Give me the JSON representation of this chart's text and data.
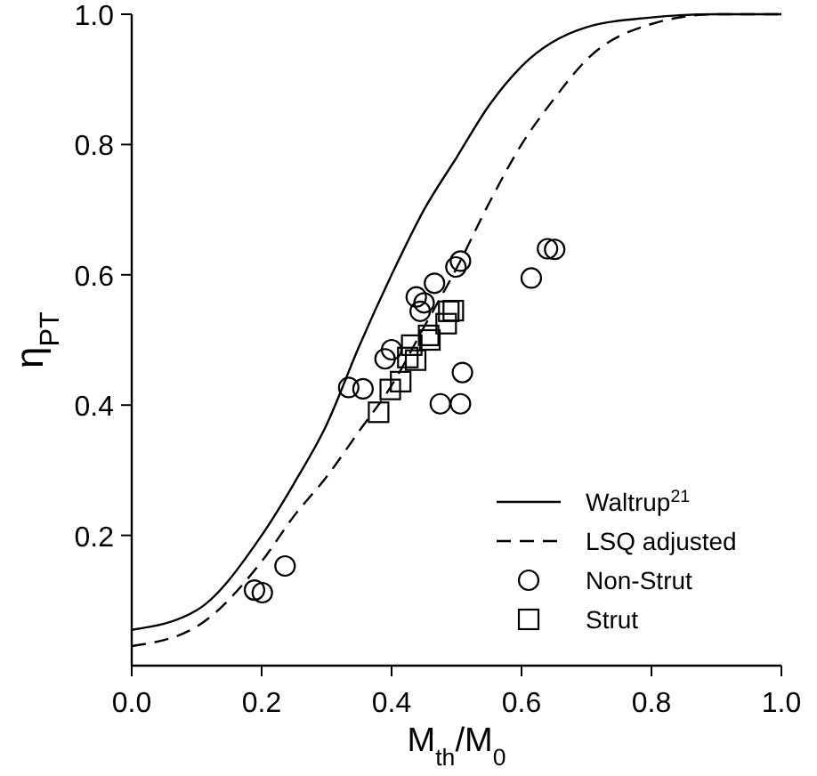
{
  "chart_data": {
    "type": "scatter",
    "xlabel": "M$_{th}$/M$_{0}$",
    "ylabel": "η$_{PT}$",
    "xlim": [
      0,
      1
    ],
    "ylim": [
      0,
      1
    ],
    "xticks": [
      {
        "value": 0,
        "label": "0.0"
      },
      {
        "value": 0.2,
        "label": "0.2"
      },
      {
        "value": 0.4,
        "label": "0.4"
      },
      {
        "value": 0.6,
        "label": "0.6"
      },
      {
        "value": 0.8,
        "label": "0.8"
      },
      {
        "value": 1,
        "label": "1.0"
      }
    ],
    "yticks": [
      {
        "value": 0.2,
        "label": "0.2"
      },
      {
        "value": 0.4,
        "label": "0.4"
      },
      {
        "value": 0.6,
        "label": "0.6"
      },
      {
        "value": 0.8,
        "label": "0.8"
      },
      {
        "value": 1,
        "label": "1.0"
      }
    ],
    "legend": "bottom right",
    "series": [
      {
        "name": "Waltrup$^{21}$",
        "type": "line",
        "color": "#000000",
        "line_style": "solid",
        "marker": "none",
        "x": [
          0,
          0.1,
          0.2,
          0.25,
          0.3,
          0.35,
          0.4,
          0.45,
          0.5,
          0.55,
          0.6,
          0.7,
          0.8,
          0.9,
          1.0
        ],
        "values": [
          0.055,
          0.085,
          0.2,
          0.28,
          0.37,
          0.49,
          0.6,
          0.7,
          0.78,
          0.86,
          0.92,
          0.98,
          0.995,
          1.0,
          1.0
        ]
      },
      {
        "name": "LSQ adjusted",
        "type": "line",
        "color": "#000000",
        "line_style": "dashed",
        "marker": "none",
        "x": [
          0,
          0.1,
          0.2,
          0.25,
          0.3,
          0.35,
          0.4,
          0.45,
          0.5,
          0.55,
          0.6,
          0.65,
          0.7,
          0.8,
          0.9,
          1.0
        ],
        "values": [
          0.03,
          0.06,
          0.16,
          0.23,
          0.29,
          0.36,
          0.43,
          0.52,
          0.61,
          0.71,
          0.8,
          0.87,
          0.93,
          0.985,
          1.0,
          1.0
        ]
      },
      {
        "name": "Non-Strut",
        "color": "#000000",
        "marker": "circle",
        "x": [
          0.189,
          0.201,
          0.236,
          0.334,
          0.356,
          0.39,
          0.4,
          0.438,
          0.466,
          0.45,
          0.444,
          0.475,
          0.506,
          0.509,
          0.499,
          0.506,
          0.615,
          0.64,
          0.651
        ],
        "values": [
          0.116,
          0.112,
          0.153,
          0.427,
          0.425,
          0.471,
          0.485,
          0.566,
          0.587,
          0.557,
          0.544,
          0.402,
          0.402,
          0.45,
          0.612,
          0.621,
          0.595,
          0.64,
          0.639
        ]
      },
      {
        "name": "Strut",
        "color": "#000000",
        "marker": "square",
        "x": [
          0.38,
          0.398,
          0.414,
          0.425,
          0.431,
          0.437,
          0.457,
          0.459,
          0.484,
          0.488,
          0.495
        ],
        "values": [
          0.389,
          0.424,
          0.436,
          0.473,
          0.492,
          0.469,
          0.507,
          0.5,
          0.525,
          0.544,
          0.545
        ]
      }
    ]
  }
}
